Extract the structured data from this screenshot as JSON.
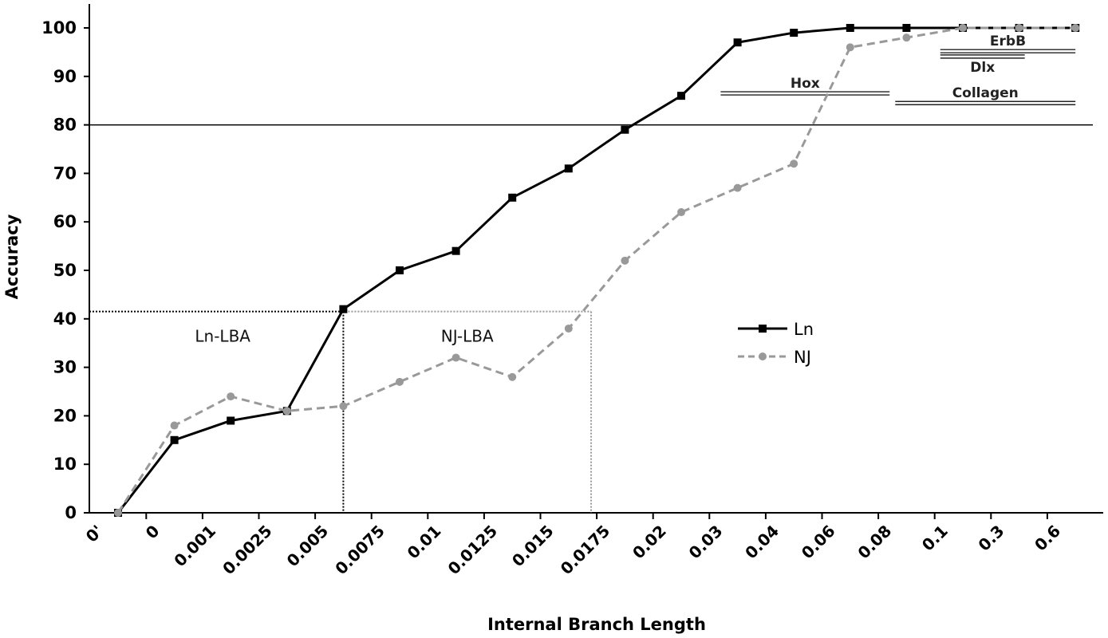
{
  "chart_data": {
    "type": "line",
    "xlabel": "Internal Branch Length",
    "ylabel": "Accuracy",
    "ylim": [
      0,
      100
    ],
    "yticks": [
      0,
      10,
      20,
      30,
      40,
      50,
      60,
      70,
      80,
      90,
      100
    ],
    "categories": [
      "0'",
      "0",
      "0.001",
      "0.0025",
      "0.005",
      "0.0075",
      "0.01",
      "0.0125",
      "0.015",
      "0.0175",
      "0.02",
      "0.03",
      "0.04",
      "0.06",
      "0.08",
      "0.1",
      "0.3",
      "0.6"
    ],
    "grid": false,
    "legend_position": "center-right",
    "series": [
      {
        "name": "Ln",
        "style": "solid",
        "marker": "square",
        "color": "#000000",
        "values": [
          0,
          15,
          19,
          21,
          42,
          50,
          54,
          65,
          71,
          79,
          86,
          97,
          99,
          100,
          100,
          100,
          100,
          100
        ]
      },
      {
        "name": "NJ",
        "style": "dashed",
        "marker": "circle",
        "color": "#999999",
        "values": [
          0,
          18,
          24,
          21,
          22,
          27,
          32,
          28,
          38,
          52,
          62,
          67,
          72,
          96,
          98,
          100,
          100,
          100
        ]
      }
    ],
    "reference_line": {
      "y": 80
    },
    "regions": [
      {
        "label": "Ln-LBA",
        "x_end_index": 4,
        "y": 41.5,
        "color": "#000000"
      },
      {
        "label": "NJ-LBA",
        "x_start_index": 4,
        "x_end_index": 8.4,
        "y": 41.5,
        "color": "#999999"
      }
    ],
    "gene_ranges": [
      {
        "label": "Hox",
        "x_start_index": 11.2,
        "x_end_index": 14.2,
        "y": 86.5
      },
      {
        "label": "Collagen",
        "x_start_index": 14.3,
        "x_end_index": 17.5,
        "y": 84.5
      },
      {
        "label": "ErbB",
        "x_start_index": 15.1,
        "x_end_index": 17.5,
        "y": 95.2
      },
      {
        "label": "Dlx",
        "x_start_index": 15.1,
        "x_end_index": 16.6,
        "y": 94.1
      }
    ]
  }
}
